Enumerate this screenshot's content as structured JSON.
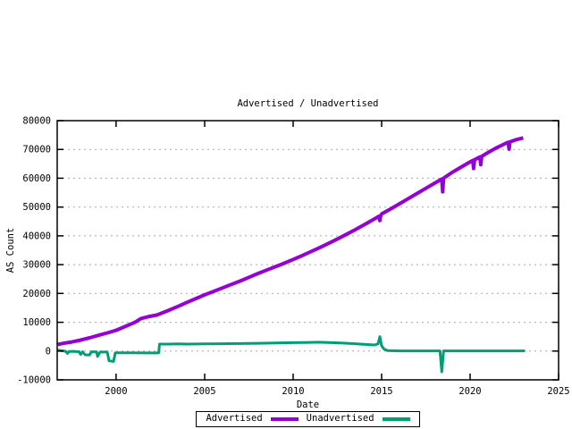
{
  "title": "Advertised / Unadvertised",
  "x_axis_label": "Date",
  "y_axis_label": "AS Count",
  "legend": {
    "items": [
      {
        "label": "Advertised"
      },
      {
        "label": "Unadvertised"
      }
    ]
  },
  "colors": {
    "advertised": "#9400d3",
    "unadvertised": "#009e73",
    "grid": "#a8a8a8",
    "border": "#000000",
    "background": "#ffffff"
  },
  "chart_data": {
    "type": "line",
    "title": "Advertised / Unadvertised",
    "xlabel": "Date",
    "ylabel": "AS Count",
    "xlim": [
      1996.67,
      2025
    ],
    "ylim": [
      -10000,
      80000
    ],
    "x_ticks": [
      2000,
      2005,
      2010,
      2015,
      2020,
      2025
    ],
    "y_ticks": [
      -10000,
      0,
      10000,
      20000,
      30000,
      40000,
      50000,
      60000,
      70000,
      80000
    ],
    "grid": "horizontal-dashed",
    "legend_position": "bottom-center",
    "series": [
      {
        "name": "Advertised",
        "color": "#9400d3",
        "stroke_width": 4,
        "points": [
          [
            1996.7,
            2300
          ],
          [
            1997,
            2650
          ],
          [
            1997.5,
            3150
          ],
          [
            1998,
            3800
          ],
          [
            1998.5,
            4600
          ],
          [
            1999,
            5450
          ],
          [
            1999.5,
            6300
          ],
          [
            2000,
            7200
          ],
          [
            2000.5,
            8500
          ],
          [
            2001,
            9800
          ],
          [
            2001.15,
            10300
          ],
          [
            2001.4,
            11300
          ],
          [
            2001.8,
            11900
          ],
          [
            2002.3,
            12500
          ],
          [
            2003,
            14200
          ],
          [
            2003.5,
            15500
          ],
          [
            2004,
            16900
          ],
          [
            2004.5,
            18200
          ],
          [
            2005,
            19500
          ],
          [
            2005.5,
            20700
          ],
          [
            2006,
            21900
          ],
          [
            2006.5,
            23100
          ],
          [
            2007,
            24300
          ],
          [
            2007.5,
            25600
          ],
          [
            2008,
            26900
          ],
          [
            2008.5,
            28100
          ],
          [
            2009,
            29300
          ],
          [
            2009.5,
            30500
          ],
          [
            2010,
            31800
          ],
          [
            2010.5,
            33100
          ],
          [
            2011,
            34500
          ],
          [
            2011.5,
            35900
          ],
          [
            2012,
            37400
          ],
          [
            2012.5,
            38900
          ],
          [
            2013,
            40500
          ],
          [
            2013.5,
            42100
          ],
          [
            2014,
            43800
          ],
          [
            2014.6,
            45900
          ],
          [
            2014.85,
            46800
          ],
          [
            2014.9,
            45300
          ],
          [
            2014.95,
            47000
          ],
          [
            2015,
            47600
          ],
          [
            2015.5,
            49300
          ],
          [
            2016,
            51100
          ],
          [
            2016.5,
            52900
          ],
          [
            2017,
            54700
          ],
          [
            2017.5,
            56500
          ],
          [
            2018,
            58300
          ],
          [
            2018.4,
            59700
          ],
          [
            2018.45,
            55300
          ],
          [
            2018.5,
            60000
          ],
          [
            2019,
            62100
          ],
          [
            2019.5,
            63900
          ],
          [
            2020,
            65700
          ],
          [
            2020.15,
            66200
          ],
          [
            2020.2,
            63400
          ],
          [
            2020.25,
            66400
          ],
          [
            2020.55,
            67400
          ],
          [
            2020.6,
            64700
          ],
          [
            2020.65,
            67600
          ],
          [
            2021,
            68900
          ],
          [
            2021.5,
            70600
          ],
          [
            2022,
            72100
          ],
          [
            2022.15,
            72500
          ],
          [
            2022.2,
            70100
          ],
          [
            2022.25,
            72600
          ],
          [
            2022.6,
            73400
          ],
          [
            2023,
            74000
          ]
        ]
      },
      {
        "name": "Unadvertised",
        "color": "#009e73",
        "stroke_width": 3,
        "points": [
          [
            1996.7,
            300
          ],
          [
            1997,
            100
          ],
          [
            1997.15,
            -100
          ],
          [
            1997.25,
            -800
          ],
          [
            1997.35,
            -150
          ],
          [
            1997.6,
            -100
          ],
          [
            1997.9,
            -250
          ],
          [
            1998,
            -1200
          ],
          [
            1998.1,
            -250
          ],
          [
            1998.25,
            -1300
          ],
          [
            1998.5,
            -1350
          ],
          [
            1998.6,
            -250
          ],
          [
            1998.9,
            -300
          ],
          [
            1998.95,
            -1900
          ],
          [
            1999.1,
            -350
          ],
          [
            1999.5,
            -350
          ],
          [
            1999.6,
            -3400
          ],
          [
            1999.85,
            -3600
          ],
          [
            1999.95,
            -600
          ],
          [
            2000.8,
            -600
          ],
          [
            2001.8,
            -650
          ],
          [
            2002.4,
            -650
          ],
          [
            2002.45,
            2400
          ],
          [
            2003,
            2400
          ],
          [
            2003.5,
            2500
          ],
          [
            2004,
            2400
          ],
          [
            2005,
            2500
          ],
          [
            2006,
            2550
          ],
          [
            2007,
            2600
          ],
          [
            2008,
            2700
          ],
          [
            2009,
            2800
          ],
          [
            2010,
            2900
          ],
          [
            2011,
            3000
          ],
          [
            2011.4,
            3050
          ],
          [
            2012,
            2950
          ],
          [
            2012.7,
            2800
          ],
          [
            2013.3,
            2600
          ],
          [
            2014,
            2350
          ],
          [
            2014.6,
            2100
          ],
          [
            2014.8,
            2500
          ],
          [
            2014.9,
            5000
          ],
          [
            2015,
            1800
          ],
          [
            2015.15,
            600
          ],
          [
            2015.35,
            150
          ],
          [
            2016,
            60
          ],
          [
            2018.3,
            60
          ],
          [
            2018.4,
            -7200
          ],
          [
            2018.5,
            60
          ],
          [
            2020,
            50
          ],
          [
            2023.1,
            50
          ]
        ]
      }
    ]
  }
}
